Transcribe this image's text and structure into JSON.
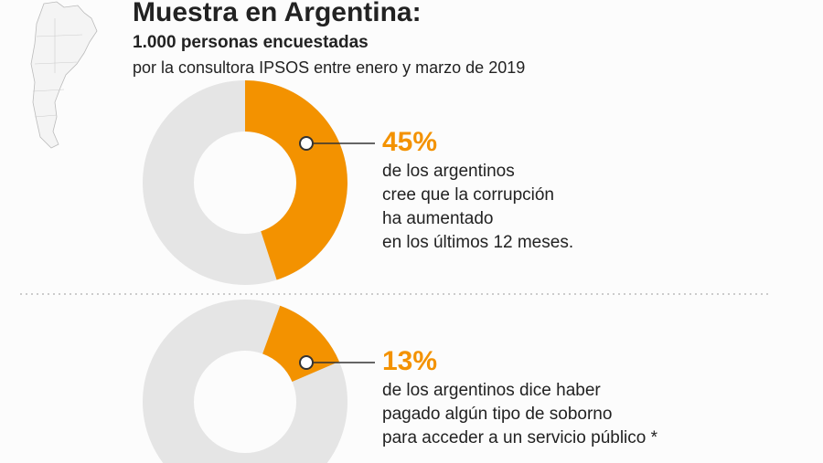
{
  "header": {
    "title": "Muestra en Argentina:",
    "subtitle": "1.000 personas encuestadas",
    "note": "por la consultora IPSOS entre enero y marzo de 2019"
  },
  "chart_data": [
    {
      "type": "donut",
      "values": [
        45
      ],
      "value_labels": [
        "45%"
      ],
      "color": "#f39200",
      "text": [
        "de los argentinos",
        "cree que la corrupción",
        "ha aumentado",
        "en los últimos 12 meses."
      ]
    },
    {
      "type": "donut",
      "values": [
        13
      ],
      "value_labels": [
        "13%"
      ],
      "color": "#f39200",
      "text": [
        "de los argentinos dice haber",
        "pagado algún tipo de soborno",
        "para acceder a un servicio público *"
      ]
    }
  ]
}
